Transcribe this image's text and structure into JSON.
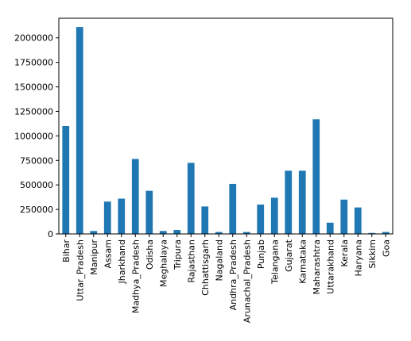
{
  "chart_data": {
    "type": "bar",
    "title": "",
    "xlabel": "",
    "ylabel": "",
    "grid": false,
    "legend": false,
    "ylim": [
      0,
      2200000
    ],
    "yticks": [
      0,
      250000,
      500000,
      750000,
      1000000,
      1250000,
      1500000,
      1750000,
      2000000
    ],
    "ytick_labels": [
      "0",
      "250000",
      "500000",
      "750000",
      "1000000",
      "1250000",
      "1500000",
      "1750000",
      "2000000"
    ],
    "bar_color": "#1f77b4",
    "categories": [
      "Bihar",
      "Uttar_Pradesh",
      "Manipur",
      "Assam",
      "Jharkhand",
      "Madhya_Pradesh",
      "Odisha",
      "Meghalaya",
      "Tripura",
      "Rajasthan",
      "Chhattisgarh",
      "Nagaland",
      "Andhra_Pradesh",
      "Arunachal_Pradesh",
      "Punjab",
      "Telangana",
      "Gujarat",
      "Karnataka",
      "Maharashtra",
      "Uttarakhand",
      "Kerala",
      "Haryana",
      "Sikkim",
      "Goa"
    ],
    "values": [
      1100000,
      2110000,
      30000,
      330000,
      360000,
      765000,
      440000,
      30000,
      40000,
      725000,
      280000,
      20000,
      510000,
      20000,
      300000,
      370000,
      645000,
      645000,
      1170000,
      115000,
      350000,
      270000,
      10000,
      20000
    ]
  }
}
